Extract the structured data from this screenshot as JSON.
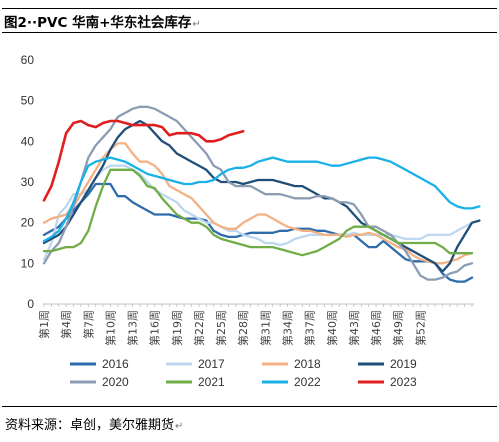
{
  "document": {
    "title": "图2··PVC 华南+华东社会库存",
    "source": "资料来源：卓创，美尔雅期货",
    "paragraph_mark": "↵"
  },
  "chart_data": {
    "type": "line",
    "title": "",
    "xlabel": "",
    "ylabel": "",
    "ylim": [
      0,
      60
    ],
    "yticks": [
      0,
      10,
      20,
      30,
      40,
      50,
      60
    ],
    "x_tick_labels": [
      "第1周",
      "第4周",
      "第7周",
      "第10周",
      "第13周",
      "第16周",
      "第19周",
      "第22周",
      "第25周",
      "第28周",
      "第31周",
      "第34周",
      "第37周",
      "第40周",
      "第43周",
      "第46周",
      "第49周",
      "第52周"
    ],
    "grid": false,
    "legend_position": "bottom",
    "series": [
      {
        "name": "2016",
        "color": "#2e6cab",
        "values": [
          17,
          18,
          19,
          21,
          23,
          25,
          27,
          29.5,
          29.5,
          29.5,
          26.5,
          26.5,
          25,
          24,
          23,
          22,
          22,
          22,
          21.5,
          21,
          21,
          21,
          20.5,
          18,
          17,
          16.5,
          16.5,
          17,
          17.5,
          17.5,
          17.5,
          17.5,
          18,
          18,
          18.5,
          18.5,
          18.5,
          18,
          18,
          17.5,
          17,
          17,
          17,
          15.5,
          14,
          14,
          15.5,
          14,
          12.5,
          11,
          10.5,
          10.5,
          10.5,
          10,
          7.5,
          6,
          5.5,
          5.5,
          6.5
        ]
      },
      {
        "name": "2017",
        "color": "#bdd7ee",
        "values": [
          11,
          15,
          22,
          24,
          27,
          27,
          28,
          31,
          33,
          34,
          34,
          34,
          33,
          32,
          30,
          28,
          27,
          26,
          25,
          23,
          22,
          21,
          20,
          20,
          19,
          18,
          18,
          17,
          16.5,
          16,
          15,
          15,
          14.5,
          15,
          16,
          16.5,
          17,
          17,
          17,
          17,
          17,
          17,
          17.5,
          17,
          17,
          17,
          17,
          17,
          16.5,
          16,
          16,
          16,
          17,
          17,
          17,
          17,
          18,
          19,
          20
        ]
      },
      {
        "name": "2018",
        "color": "#f4b183",
        "values": [
          20,
          21,
          21.5,
          22,
          24,
          27,
          30,
          33,
          36,
          38,
          39.5,
          39.5,
          37,
          35,
          35,
          34,
          32,
          29,
          28,
          27,
          26,
          24,
          22,
          20,
          19,
          18.5,
          18.5,
          20,
          21,
          22,
          22,
          21,
          20,
          19,
          18.5,
          18,
          18,
          17.5,
          17,
          17,
          17,
          16.5,
          17,
          17,
          17.5,
          17,
          16,
          15,
          14,
          13.5,
          12,
          11,
          10.5,
          10,
          10,
          10.5,
          11,
          12,
          12.5
        ]
      },
      {
        "name": "2019",
        "color": "#1f4e79",
        "values": [
          15,
          16,
          17,
          19,
          22,
          25,
          28,
          31,
          34,
          38,
          41,
          43,
          44,
          45,
          44,
          42,
          40,
          39,
          37,
          36,
          35,
          34,
          33,
          31,
          30,
          30,
          30,
          29.5,
          30,
          30.5,
          30.5,
          30.5,
          30,
          29.5,
          29,
          29,
          28,
          27,
          26,
          26,
          25,
          24,
          22,
          20,
          19,
          18,
          17,
          16,
          15,
          14,
          13,
          12,
          11,
          10,
          8,
          10,
          14,
          17,
          20,
          20.5
        ]
      },
      {
        "name": "2020",
        "color": "#8c9db3",
        "values": [
          10,
          13,
          15,
          19,
          24,
          30,
          36,
          39,
          41,
          43,
          46,
          47,
          48,
          48.5,
          48.5,
          48,
          47,
          46,
          45,
          43,
          41,
          39,
          37,
          34,
          33,
          30,
          29,
          29,
          29,
          28,
          27,
          27,
          27,
          26.5,
          26,
          26,
          26,
          26.5,
          26.5,
          26,
          25,
          25,
          24.5,
          22,
          19,
          19,
          18,
          17,
          15,
          13,
          10,
          7,
          6,
          6,
          6.5,
          7.5,
          8,
          9.5,
          10
        ]
      },
      {
        "name": "2021",
        "color": "#70ad47",
        "values": [
          13,
          13,
          13.5,
          14,
          14,
          15,
          18,
          24,
          29,
          33,
          33,
          33,
          33,
          31.5,
          29,
          28.5,
          26,
          24,
          22,
          21,
          20,
          20,
          19,
          17,
          16,
          15.5,
          15,
          14.5,
          14,
          14,
          14,
          14,
          13.5,
          13,
          12.5,
          12,
          12.5,
          13,
          14,
          15,
          16,
          18,
          19,
          19,
          19,
          18,
          17,
          16,
          15,
          15,
          15,
          15,
          15,
          15,
          14,
          12.5,
          12.5,
          12.5,
          12.5
        ]
      },
      {
        "name": "2022",
        "color": "#1ab0e8",
        "values": [
          15.5,
          16.5,
          18,
          21,
          25,
          30,
          34,
          35,
          35.5,
          36,
          35.5,
          35,
          34,
          33,
          32,
          31.5,
          31,
          30.5,
          30,
          29.5,
          29.5,
          30,
          30,
          30.5,
          32,
          33,
          33.5,
          33.5,
          34,
          35,
          35.5,
          36,
          35.5,
          35,
          35,
          35,
          35,
          35,
          34.5,
          34,
          34,
          34.5,
          35,
          35.5,
          36,
          36,
          35.5,
          35,
          34,
          33,
          32,
          31,
          30,
          29,
          27,
          25,
          24,
          23.5,
          23.5,
          24
        ]
      },
      {
        "name": "2023",
        "color": "#e01e1e",
        "values": [
          25.5,
          29,
          35,
          42,
          44.5,
          45,
          44,
          43.5,
          44.5,
          45,
          45,
          44.5,
          44,
          44,
          44,
          44,
          43.5,
          41.5,
          42,
          42,
          42,
          41.5,
          40,
          40,
          40.5,
          41.5,
          42,
          42.5
        ]
      }
    ]
  }
}
